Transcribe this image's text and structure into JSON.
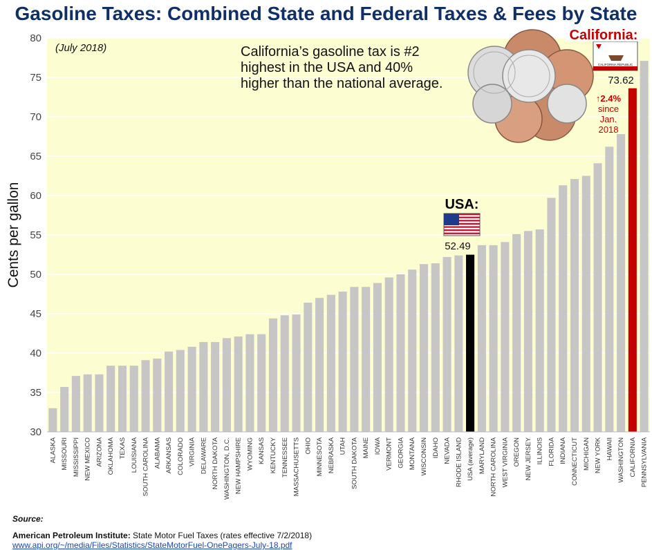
{
  "title": "Gasoline Taxes: Combined State and Federal Taxes & Fees by State",
  "colors": {
    "title": "#0f2f66",
    "plot_bg": "#fdfdd2",
    "bar": "#c6c6c6",
    "usa_bar": "#000000",
    "ca_bar": "#c40000",
    "grid": "#ffffff"
  },
  "chart_data": {
    "type": "bar",
    "title": "Gasoline Taxes: Combined State and Federal Taxes & Fees by State",
    "subtitle": "(July 2018)",
    "xlabel": "",
    "ylabel": "Cents per gallon",
    "ylim": [
      30,
      80
    ],
    "yticks": [
      30,
      35,
      40,
      45,
      50,
      55,
      60,
      65,
      70,
      75,
      80
    ],
    "grid": true,
    "categories": [
      "ALASKA",
      "MISSOURI",
      "MISSISSIPPI",
      "NEW MEXICO",
      "ARIZONA",
      "OKLAHOMA",
      "TEXAS",
      "LOUISIANA",
      "SOUTH CAROLINA",
      "ALABAMA",
      "ARKANSAS",
      "COLORADO",
      "VIRGINIA",
      "DELAWARE",
      "NORTH DAKOTA",
      "WASHINGTON, D.C.",
      "NEW HAMPSHIRE",
      "WYOMING",
      "KANSAS",
      "KENTUCKY",
      "TENNESSEE",
      "MASSACHUSETTS",
      "OHIO",
      "MINNESOTA",
      "NEBRASKA",
      "UTAH",
      "SOUTH DAKOTA",
      "MAINE",
      "IOWA",
      "VERMONT",
      "GEORGIA",
      "MONTANA",
      "WISCONSIN",
      "IDAHO",
      "NEVADA",
      "RHODE ISLAND",
      "USA (average)",
      "MARYLAND",
      "NORTH CAROLINA",
      "WEST VIRGINIA",
      "OREGON",
      "NEW JERSEY",
      "ILLINOIS",
      "FLORIDA",
      "INDIANA",
      "CONNECTICUT",
      "MICHIGAN",
      "NEW YORK",
      "HAWAII",
      "WASHINGTON",
      "CALIFORNIA",
      "PENNSYLVANIA"
    ],
    "values": [
      33.0,
      35.7,
      37.1,
      37.3,
      37.3,
      38.4,
      38.4,
      38.4,
      39.1,
      39.3,
      40.2,
      40.4,
      40.8,
      41.4,
      41.4,
      41.9,
      42.1,
      42.4,
      42.4,
      44.4,
      44.8,
      44.9,
      46.4,
      47.0,
      47.4,
      47.8,
      48.4,
      48.4,
      48.9,
      49.6,
      50.0,
      50.6,
      51.3,
      51.4,
      52.2,
      52.4,
      52.49,
      53.7,
      53.7,
      54.1,
      55.1,
      55.5,
      55.7,
      59.7,
      61.3,
      62.1,
      62.5,
      64.1,
      66.2,
      67.8,
      73.62,
      77.1
    ],
    "highlights": {
      "usa_index": 36,
      "california_index": 50
    },
    "annotations": {
      "headline": [
        "California’s gasoline tax is #2",
        "highest in the USA and 40%",
        "higher than the national average."
      ],
      "usa_label": "USA:",
      "usa_value": "52.49",
      "ca_label": "California:",
      "ca_value": "73.62",
      "ca_change": "↑2.4%",
      "ca_since": [
        "since",
        "Jan.",
        "2018"
      ],
      "flag_ca_text": "CALIFORNIA REPUBLIC"
    }
  },
  "source": {
    "heading": "Source:",
    "org": "American Petroleum Institute:",
    "desc": " State Motor Fuel Taxes (rates effective 7/2/2018)",
    "url": "www.api.org/~/media/Files/Statistics/StateMotorFuel-OnePagers-July-18.pdf"
  }
}
